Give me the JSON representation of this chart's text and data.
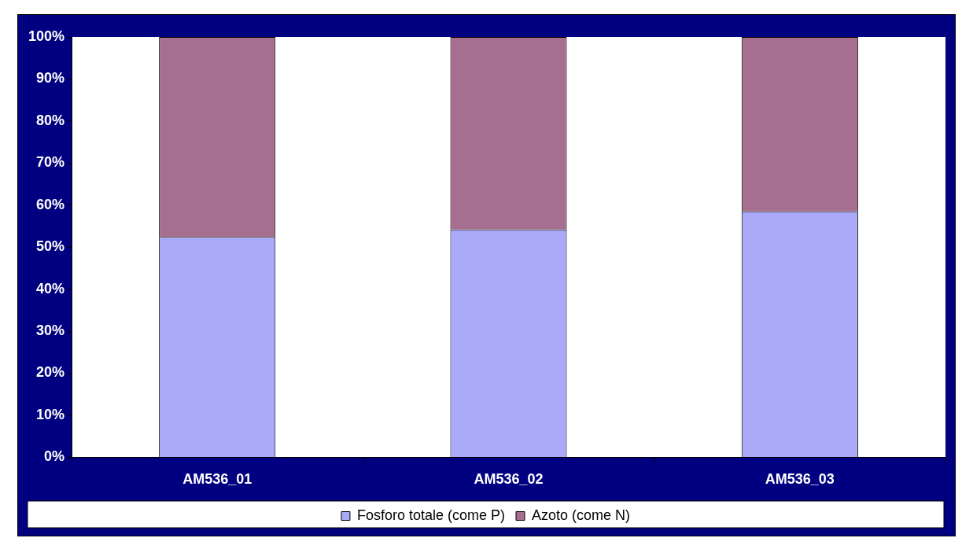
{
  "chart_data": {
    "type": "bar",
    "stacked": true,
    "categories": [
      "AM536_01",
      "AM536_02",
      "AM536_03"
    ],
    "series": [
      {
        "name": "Fosforo totale (come P)",
        "color": "#a9a9f7",
        "values": [
          52.4,
          54.2,
          58.5
        ]
      },
      {
        "name": "Azoto (come N)",
        "color": "#a66e8f",
        "values": [
          47.6,
          45.8,
          41.5
        ]
      }
    ],
    "ylim": [
      0,
      100
    ],
    "yticks": [
      {
        "value": 0,
        "label": "0%"
      },
      {
        "value": 10,
        "label": "10%"
      },
      {
        "value": 20,
        "label": "20%"
      },
      {
        "value": 30,
        "label": "30%"
      },
      {
        "value": 40,
        "label": "40%"
      },
      {
        "value": 50,
        "label": "50%"
      },
      {
        "value": 60,
        "label": "60%"
      },
      {
        "value": 70,
        "label": "70%"
      },
      {
        "value": 80,
        "label": "80%"
      },
      {
        "value": 90,
        "label": "90%"
      },
      {
        "value": 100,
        "label": "100%"
      }
    ],
    "grid": false,
    "legend": "bottom"
  }
}
